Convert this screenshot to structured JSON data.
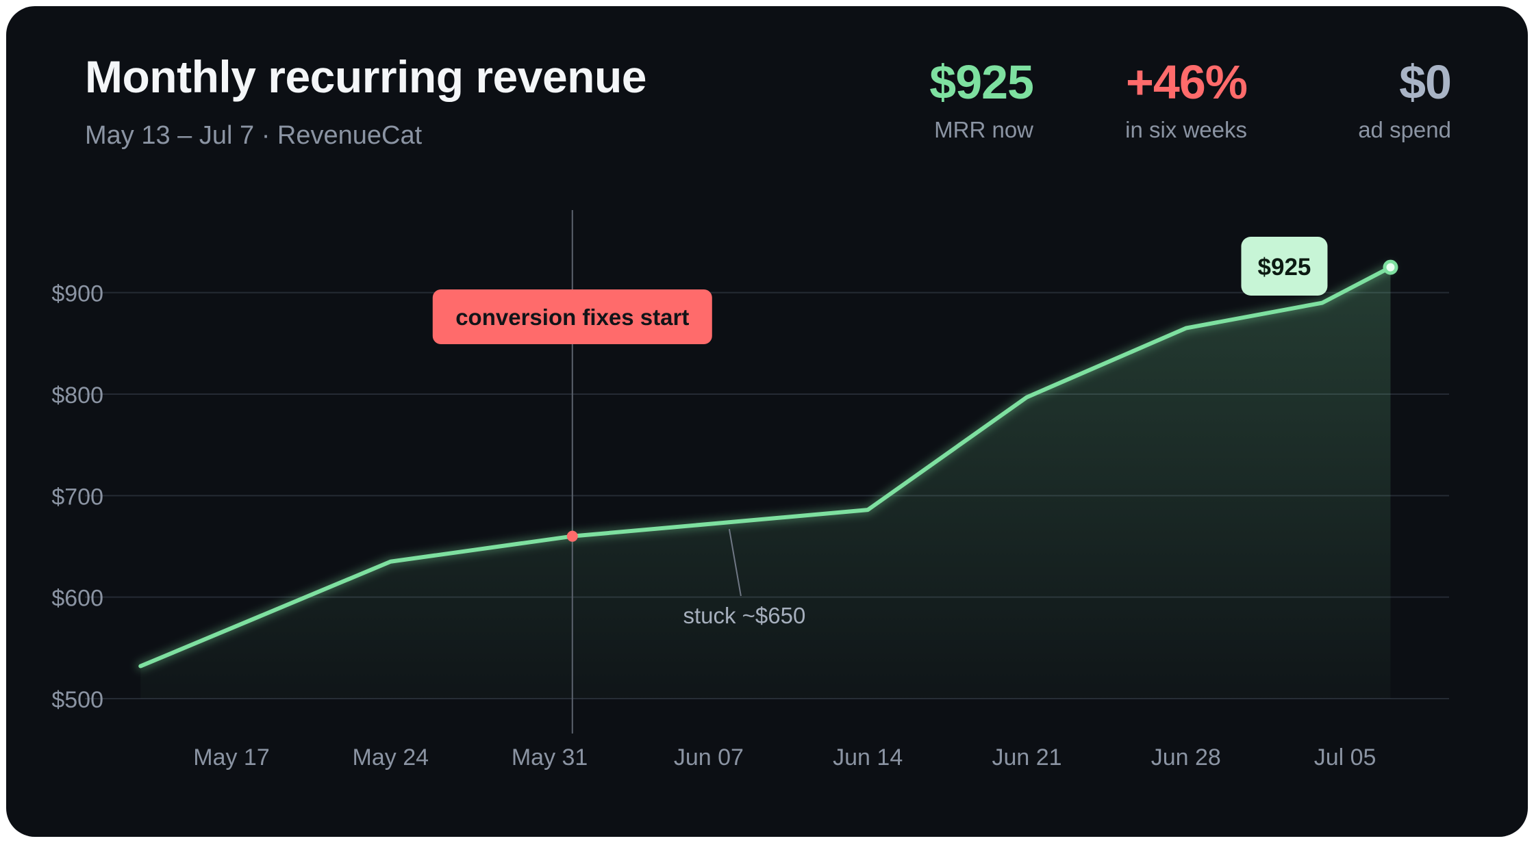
{
  "header": {
    "title": "Monthly recurring revenue",
    "subtitle": "May 13 – Jul 7 · RevenueCat"
  },
  "stats": [
    {
      "value": "$925",
      "label": "MRR now",
      "color": "#7ee0a0"
    },
    {
      "value": "+46%",
      "label": "in six weeks",
      "color": "#ff6b6b"
    },
    {
      "value": "$0",
      "label": "ad spend",
      "color": "#a9b4c6"
    }
  ],
  "colors": {
    "line": "#7ee0a0",
    "grid": "#252b34",
    "tick": "#8b94a3",
    "marker_event": "#ff6b6b",
    "callout_end_bg": "#c7f5d6",
    "callout_event_bg": "#ff6b6b"
  },
  "chart_data": {
    "type": "area",
    "x": [
      "May 13",
      "May 24",
      "Jun 01",
      "Jun 14",
      "Jun 21",
      "Jun 28",
      "Jul 04",
      "Jul 07"
    ],
    "series": [
      {
        "values": [
          532,
          635,
          660,
          686,
          797,
          865,
          890,
          925
        ]
      }
    ],
    "xticks": [
      "May 17",
      "May 24",
      "May 31",
      "Jun 07",
      "Jun 14",
      "Jun 21",
      "Jun 28",
      "Jul 05"
    ],
    "yticks": [
      "$500",
      "$600",
      "$700",
      "$800",
      "$900"
    ],
    "ylim": [
      500,
      985
    ],
    "grid": true,
    "annotations": [
      {
        "x": "Jun 01",
        "label": "conversion fixes start",
        "kind": "vertical-line"
      },
      {
        "x": "Jun 07",
        "label": "stuck ~$650",
        "kind": "note"
      },
      {
        "x": "Jul 07",
        "label": "$925",
        "kind": "end-value"
      }
    ]
  }
}
